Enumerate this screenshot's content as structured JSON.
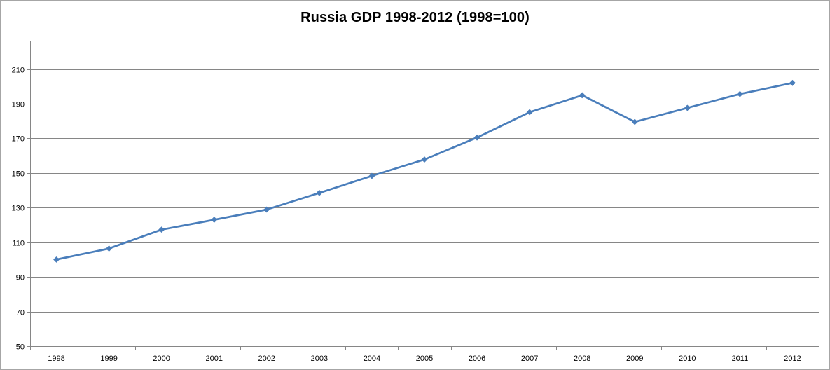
{
  "chart_data": {
    "type": "line",
    "title": "Russia GDP 1998-2012 (1998=100)",
    "xlabel": "",
    "ylabel": "",
    "categories": [
      "1998",
      "1999",
      "2000",
      "2001",
      "2002",
      "2003",
      "2004",
      "2005",
      "2006",
      "2007",
      "2008",
      "2009",
      "2010",
      "2011",
      "2012"
    ],
    "series": [
      {
        "values": [
          100,
          106.4,
          117.3,
          123,
          128.9,
          138.5,
          148.3,
          157.8,
          170.5,
          185.1,
          194.9,
          179.5,
          187.6,
          195.6,
          202
        ]
      }
    ],
    "ylim": [
      50,
      226
    ],
    "yticks": [
      50,
      70,
      90,
      110,
      130,
      150,
      170,
      190,
      210
    ],
    "grid": "horizontal",
    "legend": "none",
    "colors": {
      "line": "#4a7ebb",
      "marker": "#4a7ebb",
      "grid": "#868686",
      "axis": "#868686"
    },
    "marker": "diamond"
  }
}
